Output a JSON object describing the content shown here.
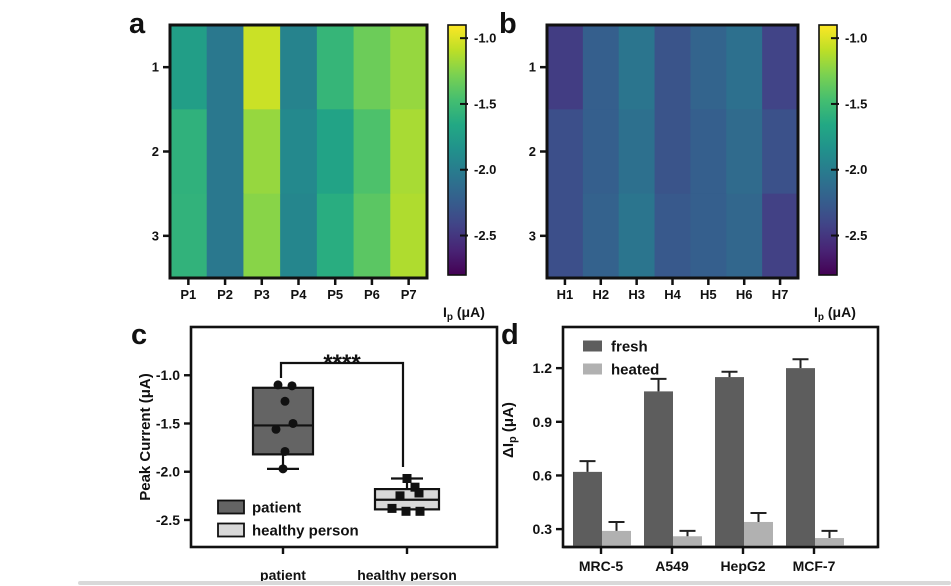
{
  "page": {
    "background": "#ffffff",
    "bottom_bar_color": "#d9d9d9",
    "text_color": "#111111"
  },
  "chart_data": [
    {
      "id": "a",
      "type": "heatmap",
      "panel_label": "a",
      "columns": [
        "P1",
        "P2",
        "P3",
        "P4",
        "P5",
        "P6",
        "P7"
      ],
      "rows": [
        "1",
        "2",
        "3"
      ],
      "values": [
        [
          -1.74,
          -2.04,
          -1.05,
          -1.96,
          -1.55,
          -1.33,
          -1.2
        ],
        [
          -1.58,
          -2.04,
          -1.2,
          -1.91,
          -1.7,
          -1.44,
          -1.15
        ],
        [
          -1.57,
          -2.04,
          -1.24,
          -1.93,
          -1.62,
          -1.39,
          -1.13
        ]
      ],
      "colormap": "viridis",
      "vmin": -2.8,
      "vmax": -0.9,
      "colorbar_ticks": [
        -1.0,
        -1.5,
        -2.0,
        -2.5
      ],
      "colorbar_label_main": "I",
      "colorbar_label_sub": "p",
      "colorbar_label_unit": " (μA)"
    },
    {
      "id": "b",
      "type": "heatmap",
      "panel_label": "b",
      "columns": [
        "H1",
        "H2",
        "H3",
        "H4",
        "H5",
        "H6",
        "H7"
      ],
      "rows": [
        "1",
        "2",
        "3"
      ],
      "values": [
        [
          -2.46,
          -2.23,
          -2.06,
          -2.31,
          -2.19,
          -2.1,
          -2.42
        ],
        [
          -2.34,
          -2.23,
          -2.1,
          -2.31,
          -2.23,
          -2.14,
          -2.33
        ],
        [
          -2.34,
          -2.21,
          -2.06,
          -2.27,
          -2.23,
          -2.17,
          -2.44
        ]
      ],
      "colormap": "viridis",
      "vmin": -2.8,
      "vmax": -0.9,
      "colorbar_ticks": [
        -1.0,
        -1.5,
        -2.0,
        -2.5
      ],
      "colorbar_label_main": "I",
      "colorbar_label_sub": "p",
      "colorbar_label_unit": " (μA)"
    },
    {
      "id": "c",
      "type": "box",
      "panel_label": "c",
      "ylabel": "Peak Current (μA)",
      "yticks": [
        -1.0,
        -1.5,
        -2.0,
        -2.5
      ],
      "ylim_top": -0.5,
      "ylim_bottom": -2.78,
      "groups": [
        {
          "label": "patient",
          "marker": "circle",
          "fill": "#646464",
          "box_high": -1.13,
          "median": -1.52,
          "box_low": -1.82,
          "whisker_low": -1.97,
          "whisker_high": null,
          "points": [
            -1.1,
            -1.11,
            -1.27,
            -1.5,
            -1.56,
            -1.79,
            -1.97
          ],
          "point_offsets": [
            -5,
            9,
            2,
            10,
            -7,
            2,
            0
          ]
        },
        {
          "label": "healthy person",
          "marker": "square",
          "fill": "#d8d8d8",
          "box_high": -2.18,
          "median": -2.29,
          "box_low": -2.39,
          "whisker_low": null,
          "whisker_high": -2.07,
          "points": [
            -2.07,
            -2.16,
            -2.22,
            -2.25,
            -2.38,
            -2.41,
            -2.41
          ],
          "point_offsets": [
            0,
            8,
            12,
            -7,
            -15,
            -1,
            13
          ]
        }
      ],
      "significance_label": "****",
      "legend": [
        {
          "label": "patient",
          "color": "#646464"
        },
        {
          "label": "healthy person",
          "color": "#d8d8d8"
        }
      ]
    },
    {
      "id": "d",
      "type": "bar",
      "panel_label": "d",
      "ylabel_main": "ΔI",
      "ylabel_sub": "p",
      "ylabel_unit": " (μA)",
      "yticks": [
        0.3,
        0.6,
        0.9,
        1.2
      ],
      "ylim": [
        0.2,
        1.43
      ],
      "categories": [
        "MRC-5",
        "A549",
        "HepG2",
        "MCF-7"
      ],
      "series": [
        {
          "name": "fresh",
          "color": "#5d5d5d",
          "values": [
            0.62,
            1.07,
            1.15,
            1.2
          ],
          "errors": [
            0.06,
            0.07,
            0.03,
            0.05
          ]
        },
        {
          "name": "heated",
          "color": "#b1b1b1",
          "values": [
            0.29,
            0.26,
            0.34,
            0.25
          ],
          "errors": [
            0.05,
            0.03,
            0.05,
            0.04
          ]
        }
      ]
    }
  ]
}
